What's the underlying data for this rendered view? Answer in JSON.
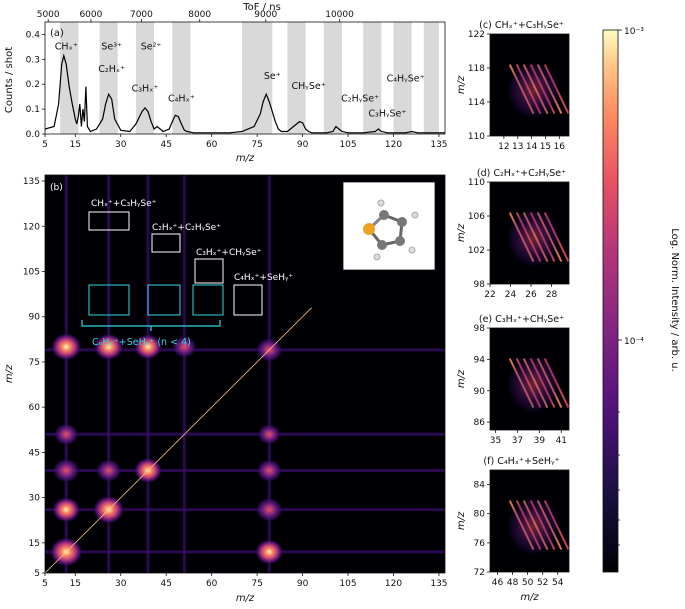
{
  "chart_data": [
    {
      "panel": "(a)",
      "type": "line",
      "top_axis_label": "ToF / ns",
      "top_ticks": [
        5000,
        6000,
        7000,
        8000,
        9000,
        10000
      ],
      "xlabel": "m/z",
      "ylabel": "Counts / shot",
      "xlim": [
        5,
        137
      ],
      "ylim": [
        0,
        0.45
      ],
      "xticks": [
        5,
        15,
        30,
        45,
        60,
        75,
        90,
        105,
        120,
        135
      ],
      "yticks": [
        0.0,
        0.1,
        0.2,
        0.3,
        0.4
      ],
      "shaded_regions": [
        [
          10,
          16
        ],
        [
          23,
          29
        ],
        [
          35,
          41
        ],
        [
          47,
          53
        ],
        [
          70,
          80
        ],
        [
          85,
          91
        ],
        [
          97,
          103
        ],
        [
          110,
          116
        ],
        [
          120,
          126
        ],
        [
          130,
          135
        ]
      ],
      "x": [
        5,
        8,
        9.5,
        10.5,
        11.2,
        12,
        13,
        14,
        15,
        15.5,
        16,
        16.5,
        17,
        17.5,
        18,
        18.5,
        19,
        19.5,
        20,
        22,
        24,
        25,
        26,
        27,
        28,
        30,
        33,
        35,
        37,
        38,
        39,
        40,
        41,
        42,
        44,
        46,
        47,
        48,
        49,
        50,
        51,
        52,
        54,
        58,
        62,
        66,
        70,
        74,
        76,
        77,
        78,
        79,
        80,
        81,
        82,
        83,
        85,
        87,
        89,
        90,
        91,
        92,
        93,
        95,
        98,
        100,
        101,
        102,
        103,
        105,
        110,
        114,
        115,
        116,
        118,
        121,
        124,
        126,
        128,
        130,
        133,
        135,
        137
      ],
      "y": [
        0.02,
        0.03,
        0.12,
        0.28,
        0.315,
        0.28,
        0.19,
        0.12,
        0.06,
        0.04,
        0.07,
        0.12,
        0.03,
        0.1,
        0.05,
        0.19,
        0.03,
        0.02,
        0.01,
        0.02,
        0.06,
        0.12,
        0.16,
        0.14,
        0.06,
        0.015,
        0.01,
        0.04,
        0.09,
        0.105,
        0.09,
        0.05,
        0.02,
        0.03,
        0.01,
        0.02,
        0.05,
        0.075,
        0.07,
        0.04,
        0.015,
        0.01,
        0.005,
        0.005,
        0.005,
        0.005,
        0.01,
        0.03,
        0.08,
        0.13,
        0.16,
        0.13,
        0.09,
        0.05,
        0.02,
        0.01,
        0.01,
        0.03,
        0.05,
        0.045,
        0.02,
        0.01,
        0.005,
        0.005,
        0.005,
        0.01,
        0.03,
        0.02,
        0.01,
        0.005,
        0.005,
        0.01,
        0.02,
        0.01,
        0.005,
        0.005,
        0.005,
        0.01,
        0.005,
        0.005,
        0.005,
        0.005,
        0.005
      ],
      "peak_labels": [
        {
          "text": "CHₓ⁺",
          "x": 12,
          "y": 0.34
        },
        {
          "text": "Se³⁺",
          "x": 27,
          "y": 0.34
        },
        {
          "text": "Se²⁺",
          "x": 40,
          "y": 0.34
        },
        {
          "text": "C₂Hₓ⁺",
          "x": 27,
          "y": 0.25
        },
        {
          "text": "C₃Hₓ⁺",
          "x": 38,
          "y": 0.17
        },
        {
          "text": "C₄Hₓ⁺",
          "x": 50,
          "y": 0.13
        },
        {
          "text": "Se⁺",
          "x": 80,
          "y": 0.22
        },
        {
          "text": "CHᵧSe⁺",
          "x": 92,
          "y": 0.18
        },
        {
          "text": "C₄HᵧSe⁺",
          "x": 124,
          "y": 0.21
        },
        {
          "text": "C₂HᵧSe⁺",
          "x": 109,
          "y": 0.13
        },
        {
          "text": "C₃HᵧSe⁺",
          "x": 118,
          "y": 0.07
        }
      ]
    },
    {
      "panel": "(b)",
      "type": "heatmap",
      "xlabel": "m/z",
      "ylabel": "m/z",
      "xlim": [
        5,
        137
      ],
      "ylim": [
        5,
        137
      ],
      "ticks": [
        5,
        15,
        30,
        45,
        60,
        75,
        90,
        105,
        120,
        135
      ],
      "annotations": [
        {
          "text": "CHₓ⁺+C₃HᵧSe⁺"
        },
        {
          "text": "C₂Hₓ⁺+C₂HᵧSe⁺"
        },
        {
          "text": "C₃Hₓ⁺+CHᵧSe⁺"
        },
        {
          "text": "C₄Hₓ⁺+SeHᵧ⁺"
        },
        {
          "text": "CₙHₓ⁺+SeHᵧ⁺  (n < 4)"
        }
      ],
      "blobs": [
        {
          "x": 12,
          "y": 12,
          "intensity": 1.0
        },
        {
          "x": 12,
          "y": 26,
          "intensity": 0.7
        },
        {
          "x": 12,
          "y": 39,
          "intensity": 0.6
        },
        {
          "x": 12,
          "y": 51,
          "intensity": 0.45
        },
        {
          "x": 12,
          "y": 80,
          "intensity": 0.85
        },
        {
          "x": 26,
          "y": 80,
          "intensity": 0.8
        },
        {
          "x": 39,
          "y": 80,
          "intensity": 0.7
        },
        {
          "x": 51,
          "y": 80,
          "intensity": 0.45
        },
        {
          "x": 26,
          "y": 26,
          "intensity": 0.9
        },
        {
          "x": 39,
          "y": 39,
          "intensity": 0.7
        },
        {
          "x": 26,
          "y": 39,
          "intensity": 0.5
        },
        {
          "x": 79,
          "y": 12,
          "intensity": 0.7
        },
        {
          "x": 79,
          "y": 26,
          "intensity": 0.6
        },
        {
          "x": 79,
          "y": 39,
          "intensity": 0.5
        },
        {
          "x": 79,
          "y": 51,
          "intensity": 0.35
        },
        {
          "x": 79,
          "y": 79,
          "intensity": 0.6
        }
      ]
    },
    {
      "panel": "(c)",
      "type": "heatmap",
      "title": "CHₓ⁺+C₃HᵧSe⁺",
      "xlabel": "",
      "ylabel": "m/z",
      "xlim": [
        11,
        16.7
      ],
      "ylim": [
        110,
        122
      ],
      "xticks": [
        12,
        13,
        14,
        15,
        16
      ],
      "yticks": [
        110,
        114,
        118,
        122
      ]
    },
    {
      "panel": "(d)",
      "type": "heatmap",
      "title": "C₂Hₓ⁺+C₂HᵧSe⁺",
      "xlabel": "",
      "ylabel": "m/z",
      "xlim": [
        22,
        29.7
      ],
      "ylim": [
        98,
        110
      ],
      "xticks": [
        22,
        24,
        26,
        28
      ],
      "yticks": [
        98,
        102,
        106,
        110
      ]
    },
    {
      "panel": "(e)",
      "type": "heatmap",
      "title": "C₃Hₓ⁺+CHᵧSe⁺",
      "xlabel": "",
      "ylabel": "m/z",
      "xlim": [
        34.5,
        41.7
      ],
      "ylim": [
        85,
        98
      ],
      "xticks": [
        35,
        37,
        39,
        41
      ],
      "yticks": [
        86,
        90,
        94,
        98
      ]
    },
    {
      "panel": "(f)",
      "type": "heatmap",
      "title": "C₄Hₓ⁺+SeHᵧ⁺",
      "xlabel": "m/z",
      "ylabel": "m/z",
      "xlim": [
        45,
        55.5
      ],
      "ylim": [
        72,
        86
      ],
      "xticks": [
        46,
        48,
        50,
        52,
        54
      ],
      "yticks": [
        72,
        76,
        80,
        84
      ]
    },
    {
      "type": "colorbar",
      "label": "Log. Norm. Intensity / arb. u.",
      "ticks": [
        "10⁻³",
        "10⁻⁴"
      ],
      "range": [
        2e-05,
        0.001
      ]
    }
  ],
  "colors": {
    "background": "#000004",
    "accent_cyan": "#33d6e0",
    "shade": "#d9d9d9"
  }
}
